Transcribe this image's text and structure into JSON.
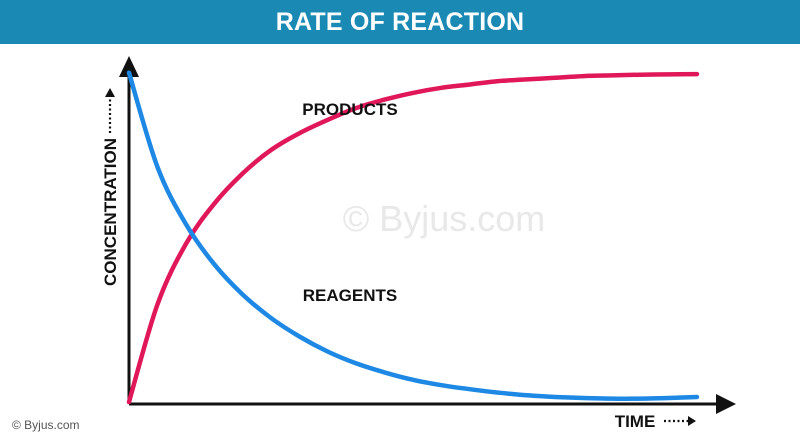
{
  "header": {
    "title": "RATE OF REACTION",
    "background": "#1a8ab5"
  },
  "watermark": "© Byjus.com",
  "footer": {
    "credit": "© Byjus.com"
  },
  "chart_data": {
    "type": "line",
    "title": "RATE OF REACTION",
    "xlabel": "TIME",
    "ylabel": "CONCENTRATION",
    "axis_arrows": true,
    "axis_label_dotted_arrows": true,
    "ticks": false,
    "grid": false,
    "legend": "none",
    "xlim": [
      0,
      10
    ],
    "ylim": [
      0,
      10
    ],
    "x": [
      0,
      0.5,
      1,
      1.5,
      2,
      2.5,
      3,
      3.5,
      4,
      4.5,
      5,
      5.5,
      6,
      6.5,
      7,
      7.5,
      8,
      8.5,
      9,
      9.5,
      10
    ],
    "series": [
      {
        "name": "PRODUCTS",
        "color": "#e0185a",
        "values": [
          0,
          2.9,
          4.7,
          5.9,
          6.8,
          7.5,
          8.0,
          8.4,
          8.75,
          9.0,
          9.2,
          9.35,
          9.45,
          9.55,
          9.6,
          9.65,
          9.7,
          9.72,
          9.74,
          9.75,
          9.76
        ]
      },
      {
        "name": "REAGENTS",
        "color": "#1e88e5",
        "values": [
          9.8,
          7.0,
          5.3,
          4.1,
          3.2,
          2.5,
          1.95,
          1.5,
          1.15,
          0.88,
          0.66,
          0.5,
          0.38,
          0.28,
          0.2,
          0.15,
          0.12,
          0.1,
          0.1,
          0.12,
          0.15
        ]
      }
    ]
  }
}
